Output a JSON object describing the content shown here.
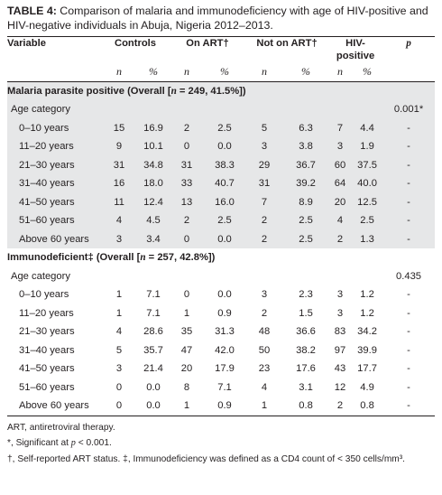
{
  "caption": {
    "label": "TABLE 4:",
    "text": " Comparison of malaria and immunodeficiency with age of HIV-positive and HIV-negative individuals in Abuja, Nigeria 2012–2013."
  },
  "columns": {
    "variable": "Variable",
    "controls": "Controls",
    "on_art": "On ART†",
    "not_on_art": "Not on ART†",
    "hiv_positive_line1": "HIV-",
    "hiv_positive_line2": "positive",
    "p": "p",
    "n": "n",
    "pct": "%"
  },
  "sections": [
    {
      "title_pre": "Malaria parasite positive (Overall [",
      "title_n": "n",
      "title_post": " = 249, 41.5%])",
      "age_label": "Age category",
      "p_value": "0.001*",
      "rows": [
        {
          "age": "0–10 years",
          "cn": "15",
          "cp": "16.9",
          "an": "2",
          "ap": "2.5",
          "nn": "5",
          "np": "6.3",
          "hn": "7",
          "hp": "4.4",
          "p": "-"
        },
        {
          "age": "11–20 years",
          "cn": "9",
          "cp": "10.1",
          "an": "0",
          "ap": "0.0",
          "nn": "3",
          "np": "3.8",
          "hn": "3",
          "hp": "1.9",
          "p": "-"
        },
        {
          "age": "21–30 years",
          "cn": "31",
          "cp": "34.8",
          "an": "31",
          "ap": "38.3",
          "nn": "29",
          "np": "36.7",
          "hn": "60",
          "hp": "37.5",
          "p": "-"
        },
        {
          "age": "31–40 years",
          "cn": "16",
          "cp": "18.0",
          "an": "33",
          "ap": "40.7",
          "nn": "31",
          "np": "39.2",
          "hn": "64",
          "hp": "40.0",
          "p": "-"
        },
        {
          "age": "41–50 years",
          "cn": "11",
          "cp": "12.4",
          "an": "13",
          "ap": "16.0",
          "nn": "7",
          "np": "8.9",
          "hn": "20",
          "hp": "12.5",
          "p": "-"
        },
        {
          "age": "51–60 years",
          "cn": "4",
          "cp": "4.5",
          "an": "2",
          "ap": "2.5",
          "nn": "2",
          "np": "2.5",
          "hn": "4",
          "hp": "2.5",
          "p": "-"
        },
        {
          "age": "Above 60 years",
          "cn": "3",
          "cp": "3.4",
          "an": "0",
          "ap": "0.0",
          "nn": "2",
          "np": "2.5",
          "hn": "2",
          "hp": "1.3",
          "p": "-"
        }
      ]
    },
    {
      "title_pre": "Immunodeficient‡ (Overall [",
      "title_n": "n",
      "title_post": " = 257, 42.8%])",
      "age_label": "Age category",
      "p_value": "0.435",
      "rows": [
        {
          "age": "0–10 years",
          "cn": "1",
          "cp": "7.1",
          "an": "0",
          "ap": "0.0",
          "nn": "3",
          "np": "2.3",
          "hn": "3",
          "hp": "1.2",
          "p": "-"
        },
        {
          "age": "11–20 years",
          "cn": "1",
          "cp": "7.1",
          "an": "1",
          "ap": "0.9",
          "nn": "2",
          "np": "1.5",
          "hn": "3",
          "hp": "1.2",
          "p": "-"
        },
        {
          "age": "21–30 years",
          "cn": "4",
          "cp": "28.6",
          "an": "35",
          "ap": "31.3",
          "nn": "48",
          "np": "36.6",
          "hn": "83",
          "hp": "34.2",
          "p": "-"
        },
        {
          "age": "31–40 years",
          "cn": "5",
          "cp": "35.7",
          "an": "47",
          "ap": "42.0",
          "nn": "50",
          "np": "38.2",
          "hn": "97",
          "hp": "39.9",
          "p": "-"
        },
        {
          "age": "41–50 years",
          "cn": "3",
          "cp": "21.4",
          "an": "20",
          "ap": "17.9",
          "nn": "23",
          "np": "17.6",
          "hn": "43",
          "hp": "17.7",
          "p": "-"
        },
        {
          "age": "51–60 years",
          "cn": "0",
          "cp": "0.0",
          "an": "8",
          "ap": "7.1",
          "nn": "4",
          "np": "3.1",
          "hn": "12",
          "hp": "4.9",
          "p": "-"
        },
        {
          "age": "Above 60 years",
          "cn": "0",
          "cp": "0.0",
          "an": "1",
          "ap": "0.9",
          "nn": "1",
          "np": "0.8",
          "hn": "2",
          "hp": "0.8",
          "p": "-"
        }
      ]
    }
  ],
  "footnotes": {
    "art": "ART, antiretroviral therapy.",
    "sig_pre": "*, Significant at ",
    "sig_p": "p",
    "sig_post": " < 0.001.",
    "last": "†, Self-reported ART status. ‡, Immunodeficiency was defined as a CD4 count of < 350 cells/mm³."
  }
}
